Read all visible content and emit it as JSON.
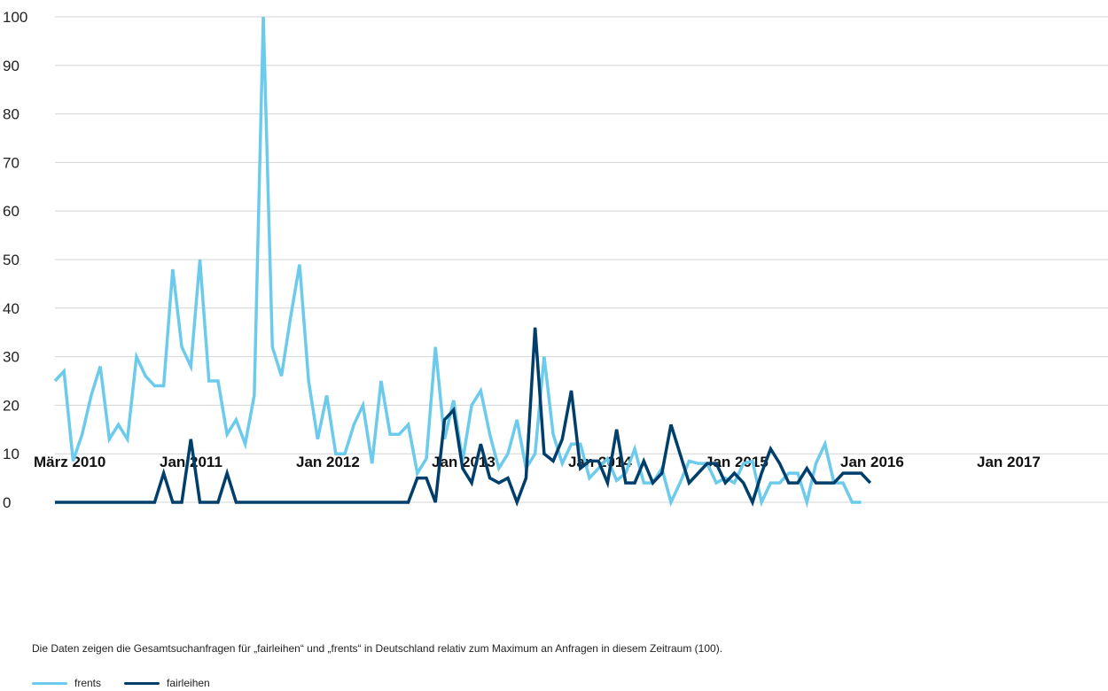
{
  "chart_data": {
    "type": "line",
    "ylim": [
      0,
      100
    ],
    "yticks": [
      0,
      10,
      20,
      30,
      40,
      50,
      60,
      70,
      80,
      90,
      100
    ],
    "x_tick_labels": [
      "März 2010",
      "Jan 2011",
      "Jan 2012",
      "Jan 2013",
      "Jan 2014",
      "Jan 2015",
      "Jan 2016",
      "Jan 2017"
    ],
    "x_tick_month_index": [
      0,
      10,
      22,
      34,
      46,
      58,
      70,
      82
    ],
    "grid": true,
    "legend_placement": "bottom-left",
    "series": [
      {
        "name": "frents",
        "color": "#6ccbed",
        "values": [
          25,
          27,
          8.5,
          14,
          22,
          28,
          13,
          16,
          13,
          30,
          26,
          24,
          24,
          48,
          32,
          28,
          50,
          25,
          25,
          14,
          17,
          12,
          22,
          100,
          32,
          26,
          38,
          49,
          25,
          13,
          22,
          10,
          10,
          16,
          20,
          8,
          25,
          14,
          14,
          16,
          6,
          9,
          32,
          13,
          21,
          8.5,
          20,
          23,
          14,
          7,
          10,
          17,
          7,
          10,
          30,
          14,
          8,
          12,
          12,
          5,
          7,
          9,
          4.5,
          6,
          11,
          4,
          4,
          7,
          0,
          4,
          8.5,
          8,
          8,
          4,
          5,
          4,
          8,
          8.5,
          0,
          4,
          4,
          6,
          6,
          0,
          8,
          12,
          4,
          4,
          0,
          0
        ]
      },
      {
        "name": "fairleihen",
        "color": "#003f6b",
        "values": [
          0,
          0,
          0,
          0,
          0,
          0,
          0,
          0,
          0,
          0,
          0,
          0,
          6,
          0,
          0,
          13,
          0,
          0,
          0,
          6,
          0,
          0,
          0,
          0,
          0,
          0,
          0,
          0,
          0,
          0,
          0,
          0,
          0,
          0,
          0,
          0,
          0,
          0,
          0,
          0,
          5,
          5,
          0,
          17,
          19,
          7,
          4,
          12,
          5,
          4,
          5,
          0,
          5,
          36,
          10,
          8.5,
          13,
          23,
          7,
          8.5,
          8.5,
          4,
          15,
          4,
          4,
          8.5,
          4,
          6,
          16,
          10,
          4,
          6,
          8,
          8,
          4,
          6,
          4,
          0,
          6,
          11,
          8,
          4,
          4,
          7,
          4,
          4,
          4,
          6,
          6,
          6,
          4
        ]
      }
    ]
  },
  "note": "Die Daten zeigen die Gesamtsuchanfragen für „fairleihen“ und „frents“ in Deutschland relativ zum Maximum an Anfragen in diesem Zeitraum (100).",
  "legend": {
    "items": [
      {
        "label": "frents",
        "color": "#6ccbed"
      },
      {
        "label": "fairleihen",
        "color": "#003f6b"
      }
    ]
  }
}
